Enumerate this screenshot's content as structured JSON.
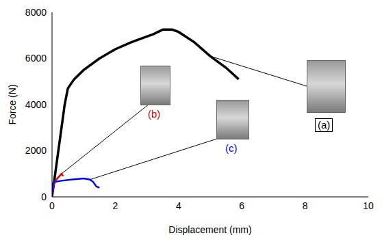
{
  "chart_data": {
    "type": "line",
    "x_label": "Displacement (mm)",
    "y_label": "Force (N)",
    "xlim": [
      0,
      10
    ],
    "xticks": [
      0,
      2,
      4,
      6,
      8,
      10
    ],
    "ylim": [
      0,
      8000
    ],
    "yticks": [
      0,
      2000,
      4000,
      6000,
      8000
    ],
    "grid": false,
    "series": [
      {
        "color": "#000000",
        "x": [
          0,
          0.1,
          0.2,
          0.3,
          0.4,
          0.5,
          0.7,
          1,
          1.5,
          2,
          2.5,
          3,
          3.2,
          3.5,
          3.8,
          4,
          4.5,
          5,
          5.5,
          5.9
        ],
        "values": [
          0,
          1000,
          2000,
          3000,
          4000,
          4700,
          5100,
          5500,
          6000,
          6400,
          6700,
          6950,
          7050,
          7250,
          7250,
          7150,
          6700,
          6100,
          5600,
          5100
        ]
      },
      {
        "color": "#e00000",
        "x": [
          0,
          0.05,
          0.1,
          0.2,
          0.3,
          0.35
        ],
        "values": [
          0,
          500,
          700,
          850,
          1000,
          900
        ]
      },
      {
        "color": "#0000ff",
        "x": [
          0,
          0.03,
          0.1,
          0.3,
          0.6,
          1.0,
          1.2,
          1.3,
          1.4,
          1.5
        ],
        "values": [
          0,
          600,
          650,
          700,
          750,
          800,
          750,
          650,
          450,
          400
        ]
      }
    ],
    "annotations": [
      {
        "text": "(a)",
        "color": "#000000"
      },
      {
        "text": "(b)",
        "color": "#e00000"
      },
      {
        "text": "(c)",
        "color": "#0000ff"
      }
    ]
  }
}
